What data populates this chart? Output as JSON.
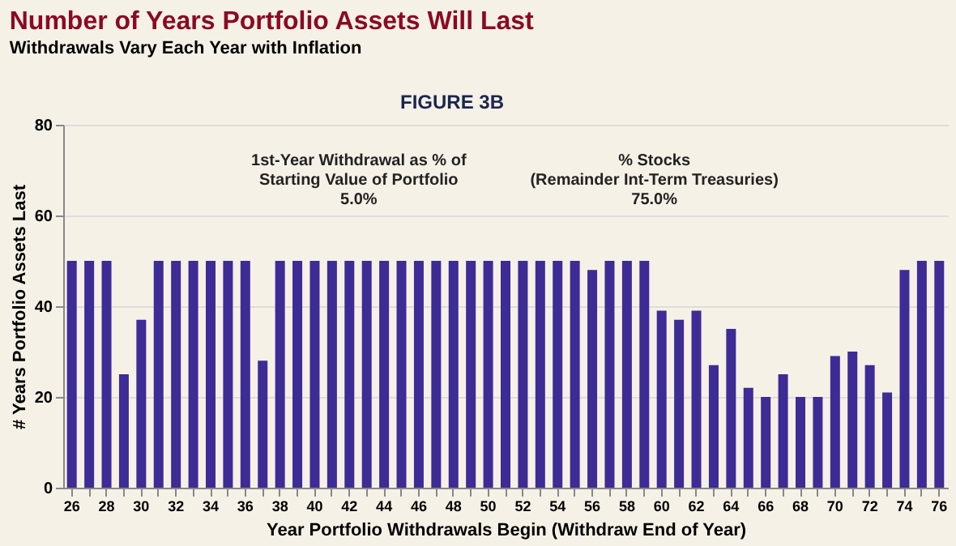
{
  "chart_data": {
    "type": "bar",
    "title": "Number of Years Portfolio Assets Will Last",
    "subtitle": "Withdrawals Vary Each Year with Inflation",
    "xlabel": "Year Portfolio Withdrawals Begin (Withdraw End of Year)",
    "ylabel": "# Years Portfolio Assets Last",
    "annotations": [
      "FIGURE 3B",
      "1st-Year Withdrawal as % of\nStarting Value of Portfolio\n5.0%",
      "% Stocks\n(Remainder Int-Term Treasuries)\n75.0%"
    ],
    "categories": [
      "26",
      null,
      "28",
      null,
      "30",
      null,
      "32",
      null,
      "34",
      null,
      "36",
      null,
      "38",
      null,
      "40",
      null,
      "42",
      null,
      "44",
      null,
      "46",
      null,
      "48",
      null,
      "50",
      null,
      "52",
      null,
      "54",
      null,
      "56",
      null,
      "58",
      null,
      "60",
      null,
      "62",
      null,
      "64",
      null,
      "66",
      null,
      "68",
      null,
      "70",
      null,
      "72",
      null,
      "74",
      null,
      "76"
    ],
    "values": [
      50,
      50,
      50,
      25,
      37,
      50,
      50,
      50,
      50,
      50,
      50,
      28,
      50,
      50,
      50,
      50,
      50,
      50,
      50,
      50,
      50,
      50,
      50,
      50,
      50,
      50,
      50,
      50,
      50,
      50,
      48,
      50,
      50,
      50,
      39,
      37,
      39,
      27,
      35,
      22,
      20,
      25,
      20,
      20,
      29,
      30,
      27,
      21,
      48,
      50,
      50
    ],
    "color": "#3d2b96",
    "ylim": [
      0,
      80
    ],
    "yticks": [
      0,
      20,
      40,
      60,
      80
    ],
    "grid": "y"
  }
}
